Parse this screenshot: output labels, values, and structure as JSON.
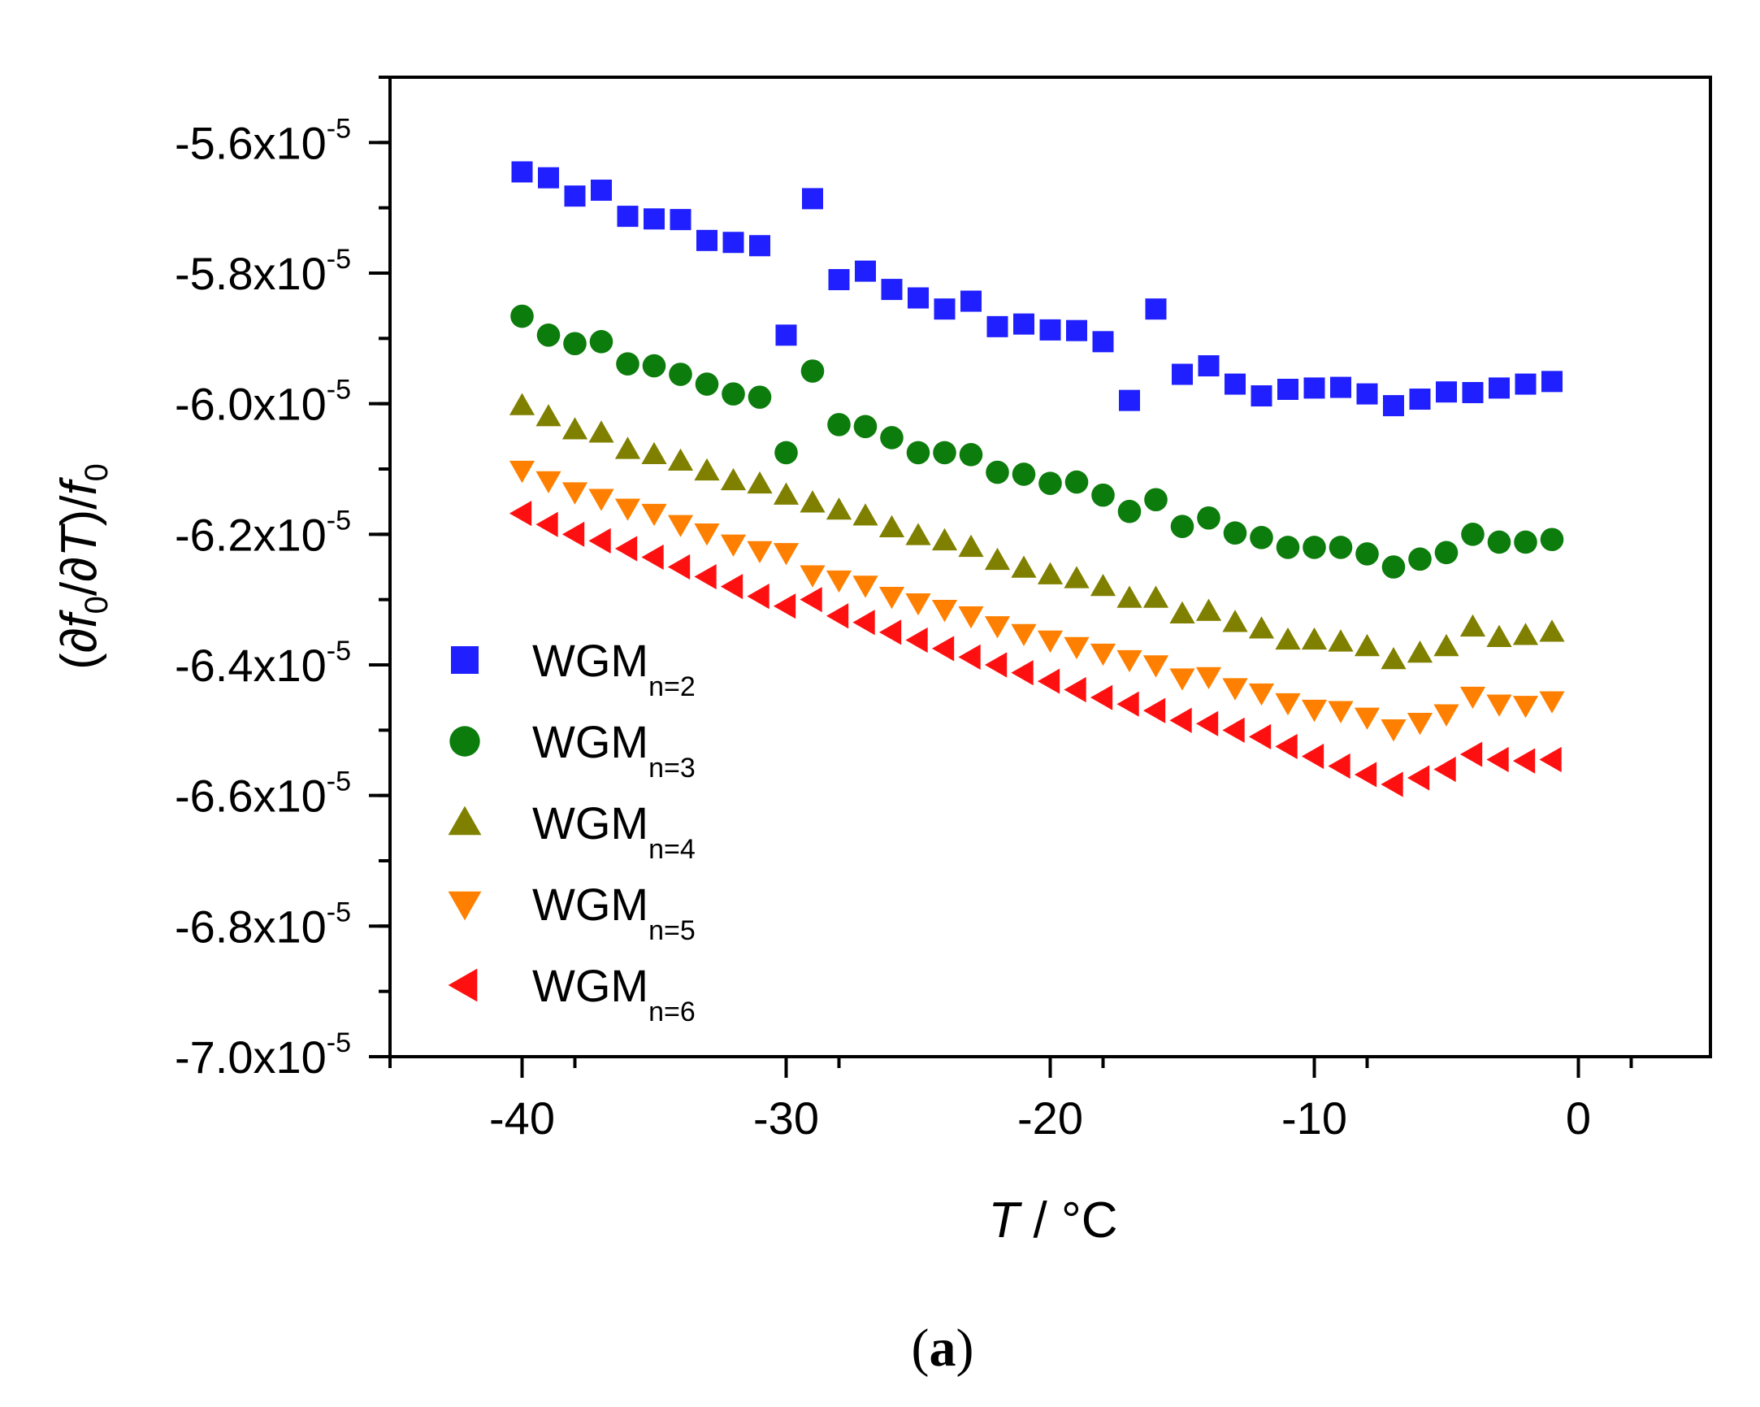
{
  "chart_data": {
    "type": "scatter",
    "title": "",
    "caption": {
      "open": "(",
      "letter": "a",
      "close": ")"
    },
    "xlabel": {
      "var": "T",
      "rest": " / °C"
    },
    "ylabel": {
      "p1": "(∂",
      "f1": "f",
      "s1": "0",
      "p2": "/∂",
      "t": "T",
      "p3": ")/",
      "f2": "f",
      "s2": "0"
    },
    "xlim": [
      -45,
      5
    ],
    "ylim": [
      -7e-05,
      -5.5e-05
    ],
    "xticks": [
      -40,
      -30,
      -20,
      -10,
      0
    ],
    "xtick_labels": [
      "-40",
      "-30",
      "-20",
      "-10",
      "0"
    ],
    "yticks": [
      -5.6e-05,
      -5.8e-05,
      -6e-05,
      -6.2e-05,
      -6.4e-05,
      -6.6e-05,
      -6.8e-05,
      -7e-05
    ],
    "ytick_labels": [
      {
        "mant": "-5.6x10",
        "exp": "-5"
      },
      {
        "mant": "-5.8x10",
        "exp": "-5"
      },
      {
        "mant": "-6.0x10",
        "exp": "-5"
      },
      {
        "mant": "-6.2x10",
        "exp": "-5"
      },
      {
        "mant": "-6.4x10",
        "exp": "-5"
      },
      {
        "mant": "-6.6x10",
        "exp": "-5"
      },
      {
        "mant": "-6.8x10",
        "exp": "-5"
      },
      {
        "mant": "-7.0x10",
        "exp": "-5"
      }
    ],
    "legend_position": "lower-left",
    "x": [
      -40,
      -39,
      -38,
      -37,
      -36,
      -35,
      -34,
      -33,
      -32,
      -31,
      -30,
      -29,
      -28,
      -27,
      -26,
      -25,
      -24,
      -23,
      -22,
      -21,
      -20,
      -19,
      -18,
      -17,
      -16,
      -15,
      -14,
      -13,
      -12,
      -11,
      -10,
      -9,
      -8,
      -7,
      -6,
      -5,
      -4,
      -3,
      -2,
      -1
    ],
    "series": [
      {
        "name": "WGM",
        "sub": "n=2",
        "marker": "square",
        "color": "#1f1fff",
        "values": [
          -5.645,
          -5.654,
          -5.682,
          -5.673,
          -5.713,
          -5.717,
          -5.718,
          -5.75,
          -5.753,
          -5.758,
          -5.895,
          -5.686,
          -5.81,
          -5.797,
          -5.825,
          -5.838,
          -5.855,
          -5.843,
          -5.882,
          -5.878,
          -5.887,
          -5.888,
          -5.905,
          -5.995,
          -5.855,
          -5.955,
          -5.942,
          -5.97,
          -5.988,
          -5.978,
          -5.976,
          -5.975,
          -5.985,
          -6.003,
          -5.993,
          -5.982,
          -5.983,
          -5.976,
          -5.97,
          -5.966
        ]
      },
      {
        "name": "WGM",
        "sub": "n=3",
        "marker": "circle",
        "color": "#0c7c0c",
        "values": [
          -5.866,
          -5.895,
          -5.908,
          -5.905,
          -5.939,
          -5.942,
          -5.955,
          -5.97,
          -5.985,
          -5.99,
          -6.075,
          -5.95,
          -6.032,
          -6.035,
          -6.052,
          -6.075,
          -6.075,
          -6.078,
          -6.105,
          -6.108,
          -6.122,
          -6.12,
          -6.14,
          -6.165,
          -6.147,
          -6.188,
          -6.175,
          -6.198,
          -6.205,
          -6.22,
          -6.22,
          -6.22,
          -6.23,
          -6.25,
          -6.238,
          -6.228,
          -6.2,
          -6.212,
          -6.212,
          -6.208
        ]
      },
      {
        "name": "WGM",
        "sub": "n=4",
        "marker": "triangle-up",
        "color": "#808000",
        "values": [
          -6.003,
          -6.02,
          -6.04,
          -6.045,
          -6.07,
          -6.078,
          -6.088,
          -6.103,
          -6.118,
          -6.123,
          -6.14,
          -6.152,
          -6.163,
          -6.172,
          -6.19,
          -6.202,
          -6.21,
          -6.22,
          -6.24,
          -6.252,
          -6.262,
          -6.268,
          -6.28,
          -6.298,
          -6.298,
          -6.322,
          -6.318,
          -6.335,
          -6.345,
          -6.362,
          -6.362,
          -6.365,
          -6.372,
          -6.392,
          -6.382,
          -6.372,
          -6.342,
          -6.358,
          -6.355,
          -6.35
        ]
      },
      {
        "name": "WGM",
        "sub": "n=5",
        "marker": "triangle-down",
        "color": "#ff8000",
        "values": [
          -6.102,
          -6.118,
          -6.135,
          -6.145,
          -6.16,
          -6.168,
          -6.185,
          -6.198,
          -6.215,
          -6.225,
          -6.228,
          -6.262,
          -6.27,
          -6.278,
          -6.295,
          -6.305,
          -6.315,
          -6.325,
          -6.34,
          -6.352,
          -6.362,
          -6.372,
          -6.382,
          -6.392,
          -6.4,
          -6.42,
          -6.418,
          -6.435,
          -6.443,
          -6.458,
          -6.468,
          -6.47,
          -6.48,
          -6.498,
          -6.488,
          -6.475,
          -6.448,
          -6.46,
          -6.462,
          -6.455
        ]
      },
      {
        "name": "WGM",
        "sub": "n=6",
        "marker": "triangle-left",
        "color": "#ff1010",
        "values": [
          -6.168,
          -6.185,
          -6.2,
          -6.21,
          -6.222,
          -6.235,
          -6.25,
          -6.265,
          -6.28,
          -6.295,
          -6.31,
          -6.3,
          -6.325,
          -6.335,
          -6.35,
          -6.362,
          -6.375,
          -6.388,
          -6.4,
          -6.412,
          -6.425,
          -6.438,
          -6.45,
          -6.46,
          -6.47,
          -6.485,
          -6.49,
          -6.5,
          -6.51,
          -6.525,
          -6.54,
          -6.555,
          -6.568,
          -6.583,
          -6.573,
          -6.56,
          -6.537,
          -6.545,
          -6.547,
          -6.545
        ]
      }
    ],
    "value_scale_note": "x10^-5"
  }
}
